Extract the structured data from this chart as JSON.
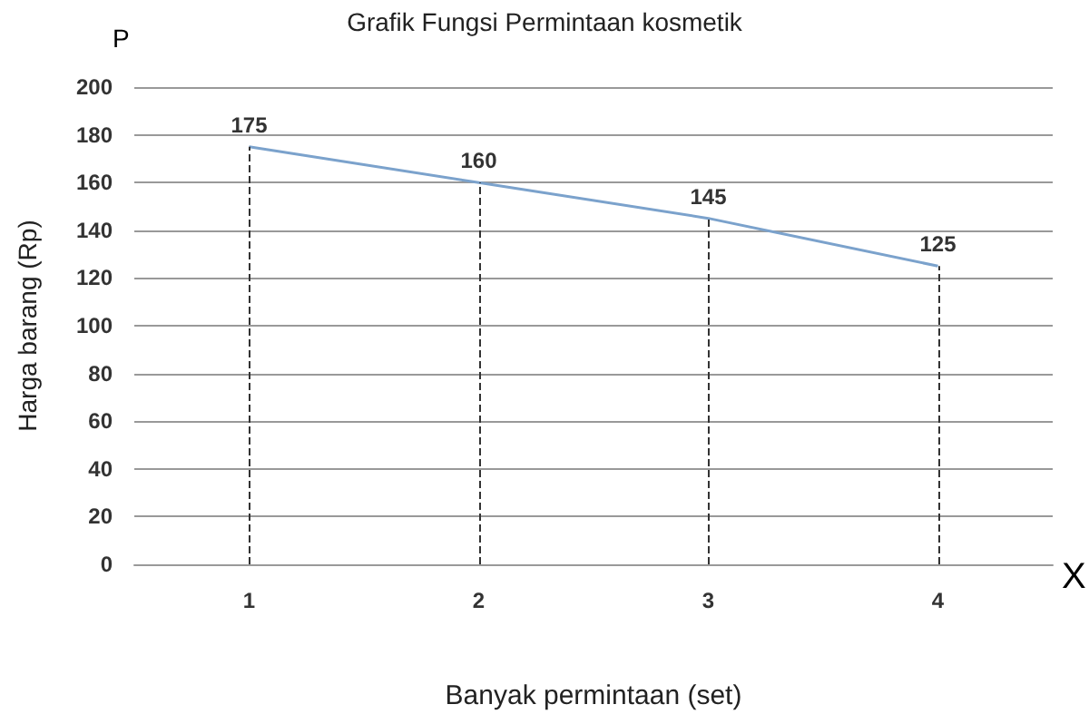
{
  "chart_data": {
    "type": "line",
    "title": "Grafik Fungsi Permintaan kosmetik",
    "xlabel": "Banyak permintaan (set)",
    "ylabel": "Harga barang (Rp)",
    "annotations": [
      "P",
      "X"
    ],
    "categories": [
      "1",
      "2",
      "3",
      "4"
    ],
    "series": [
      {
        "color": "#7ba2cc",
        "values": [
          175,
          160,
          145,
          125
        ]
      }
    ],
    "data_labels": true,
    "marker": "none",
    "grid": "y",
    "ylim": [
      0,
      200
    ],
    "yticks": [
      0,
      20,
      40,
      60,
      80,
      100,
      120,
      140,
      160,
      180,
      200
    ],
    "ref_lines": [
      {
        "axis": "x",
        "value": "1",
        "color": "#333333",
        "line_style": "dashed"
      },
      {
        "axis": "x",
        "value": "2",
        "color": "#333333",
        "line_style": "dashed"
      },
      {
        "axis": "x",
        "value": "3",
        "color": "#333333",
        "line_style": "dashed"
      },
      {
        "axis": "x",
        "value": "4",
        "color": "#333333",
        "line_style": "dashed"
      }
    ]
  }
}
